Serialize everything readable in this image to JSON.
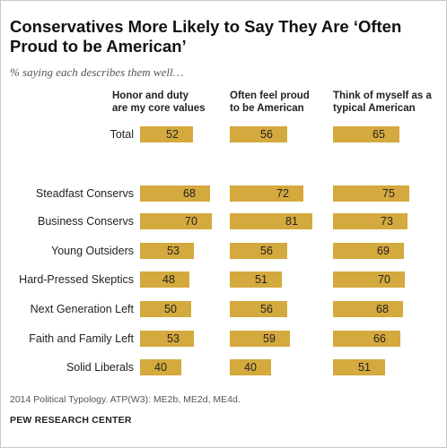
{
  "title": "Conservatives More Likely to Say They Are ‘Often Proud to be American’",
  "subtitle": "% saying each describes them well…",
  "footnote": "2014 Political Typology. ATP(W3): ME2b, ME2d, ME4d.",
  "source": "PEW RESEARCH CENTER",
  "colors": {
    "bar": "#d4a93d"
  },
  "chart_data": {
    "type": "bar",
    "orientation": "horizontal",
    "categories": [
      "Total",
      "Steadfast Conservs",
      "Business Conservs",
      "Young Outsiders",
      "Hard-Pressed Skeptics",
      "Next Generation Left",
      "Faith and Family Left",
      "Solid Liberals"
    ],
    "series": [
      {
        "name": "Honor and duty are my core values",
        "header_lines": [
          "Honor and duty",
          "are my core values"
        ],
        "values": [
          52,
          68,
          70,
          53,
          48,
          50,
          53,
          40
        ]
      },
      {
        "name": "Often feel proud to be American",
        "header_lines": [
          "Often feel proud",
          "to be American"
        ],
        "values": [
          56,
          72,
          81,
          56,
          51,
          56,
          59,
          40
        ]
      },
      {
        "name": "Think of myself as a typical American",
        "header_lines": [
          "Think of myself as a",
          "typical American"
        ],
        "values": [
          65,
          75,
          73,
          69,
          70,
          68,
          66,
          51
        ]
      }
    ],
    "grid": false,
    "legend": "none"
  }
}
